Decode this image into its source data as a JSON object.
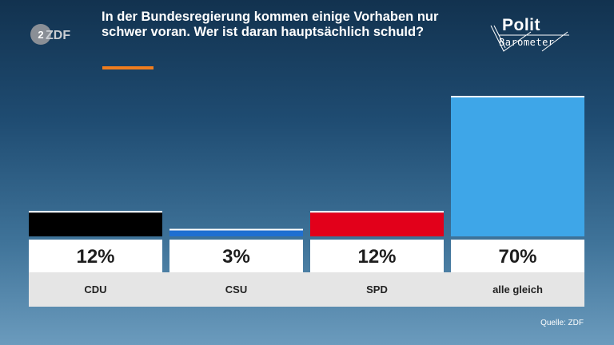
{
  "header": {
    "title": "In der Bundesregierung kommen einige Vorhaben nur schwer voran. Wer ist daran hauptsächlich schuld?",
    "accent_color": "#f07d1e"
  },
  "branding": {
    "broadcaster_logo": "ZDF",
    "program_logo_line1": "Polit",
    "program_logo_line2": "Barometer"
  },
  "source": "Quelle: ZDF",
  "chart_data": {
    "type": "bar",
    "categories": [
      "CDU",
      "CSU",
      "SPD",
      "alle gleich"
    ],
    "values": [
      12,
      3,
      12,
      70
    ],
    "value_labels": [
      "12%",
      "3%",
      "12%",
      "70%"
    ],
    "colors": [
      "#000000",
      "#1f6fd1",
      "#e2001a",
      "#3ea6e8"
    ],
    "ylim": [
      0,
      70
    ],
    "grid": false,
    "legend": "none"
  }
}
